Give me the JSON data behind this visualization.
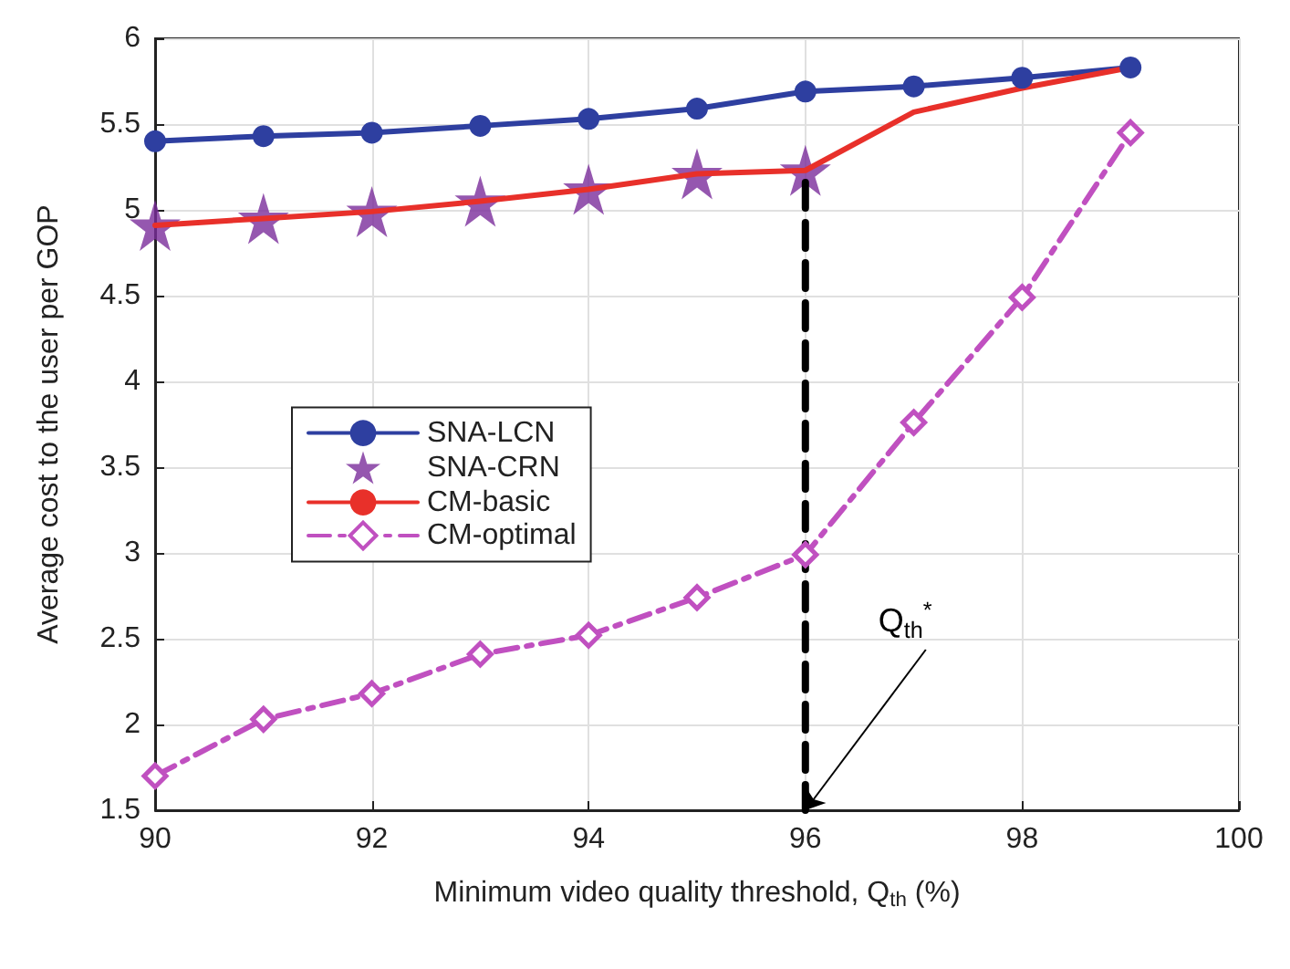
{
  "chart_data": {
    "type": "line",
    "xlabel": "Minimum video quality threshold, Q$_{th}$ (%)",
    "ylabel": "Average cost to the user per GOP",
    "x": [
      90,
      91,
      92,
      93,
      94,
      95,
      96,
      97,
      98,
      99
    ],
    "series": [
      {
        "name": "SNA-LCN",
        "color": "#2e3fa0",
        "marker": "circle",
        "line_style": "solid",
        "values": [
          5.4,
          5.43,
          5.45,
          5.49,
          5.53,
          5.59,
          5.69,
          5.72,
          5.77,
          5.83
        ]
      },
      {
        "name": "SNA-CRN",
        "type": "scatter",
        "color": "#7b2d9b",
        "marker": "star",
        "x": [
          90,
          91,
          92,
          93,
          94,
          95,
          96
        ],
        "values": [
          4.91,
          4.95,
          4.99,
          5.05,
          5.12,
          5.21,
          5.23
        ]
      },
      {
        "name": "CM-basic",
        "color": "#e8302a",
        "marker": "none",
        "line_style": "solid",
        "values": [
          4.91,
          4.95,
          4.99,
          5.05,
          5.12,
          5.21,
          5.23,
          5.57,
          5.71,
          5.83
        ]
      },
      {
        "name": "CM-optimal",
        "color": "#c050c0",
        "marker": "diamond",
        "line_style": "dashdot",
        "values": [
          1.7,
          2.03,
          2.18,
          2.41,
          2.52,
          2.74,
          2.99,
          3.76,
          4.49,
          5.45
        ]
      },
      {
        "type": "line",
        "color": "#000000",
        "marker": "none",
        "line_style": "dashed",
        "x": [
          96,
          96
        ],
        "values": [
          1.5,
          5.18
        ]
      }
    ],
    "annotations": [
      {
        "text": "Q$_{th}$$^{*}$",
        "x": 96,
        "y": 1.5
      }
    ],
    "xlim": [
      90,
      100
    ],
    "xticks": [
      90,
      92,
      94,
      96,
      98,
      100
    ],
    "ylim": [
      1.5,
      6
    ],
    "yticks": [
      1.5,
      2,
      2.5,
      3,
      3.5,
      4,
      4.5,
      5,
      5.5,
      6
    ],
    "grid": true,
    "legend": "left"
  }
}
